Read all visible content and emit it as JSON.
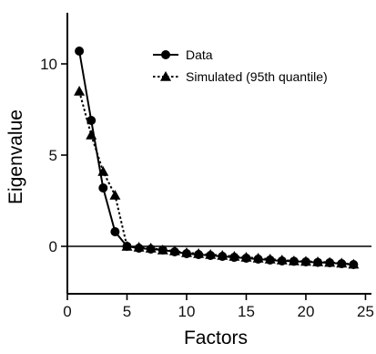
{
  "chart_data": {
    "type": "line",
    "xlabel": "Factors",
    "ylabel": "Eigenvalue",
    "xlim": [
      0,
      25.5
    ],
    "ylim": [
      -2.6,
      12.8
    ],
    "x_ticks": [
      0,
      5,
      10,
      15,
      20,
      25
    ],
    "y_ticks": [
      0,
      5,
      10
    ],
    "reference_line_y": 0,
    "legend_position": "top-right",
    "series": [
      {
        "name": "Data",
        "marker": "circle",
        "line_style": "solid",
        "x": [
          1,
          2,
          3,
          4,
          5,
          6,
          7,
          8,
          9,
          10,
          11,
          12,
          13,
          14,
          15,
          16,
          17,
          18,
          19,
          20,
          21,
          22,
          23,
          24
        ],
        "values": [
          10.7,
          6.9,
          3.2,
          0.8,
          0.0,
          -0.1,
          -0.15,
          -0.2,
          -0.3,
          -0.4,
          -0.45,
          -0.5,
          -0.55,
          -0.6,
          -0.65,
          -0.7,
          -0.75,
          -0.8,
          -0.82,
          -0.85,
          -0.88,
          -0.9,
          -0.95,
          -1.0
        ]
      },
      {
        "name": "Simulated (95th quantile)",
        "marker": "triangle",
        "line_style": "dotted",
        "x": [
          1,
          2,
          3,
          4,
          5,
          6,
          7,
          8,
          9,
          10,
          11,
          12,
          13,
          14,
          15,
          16,
          17,
          18,
          19,
          20,
          21,
          22,
          23,
          24
        ],
        "values": [
          8.5,
          6.1,
          4.1,
          2.8,
          0.0,
          -0.05,
          -0.1,
          -0.2,
          -0.25,
          -0.35,
          -0.4,
          -0.45,
          -0.5,
          -0.55,
          -0.6,
          -0.65,
          -0.7,
          -0.75,
          -0.8,
          -0.82,
          -0.85,
          -0.88,
          -0.92,
          -0.98
        ]
      }
    ]
  },
  "colors": {
    "ink": "#000000",
    "background": "#ffffff"
  }
}
